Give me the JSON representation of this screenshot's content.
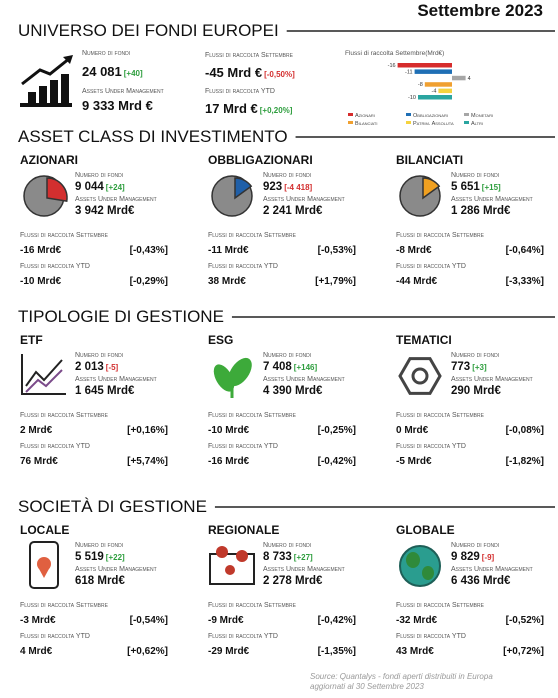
{
  "date": "Settembre 2023",
  "labels": {
    "funds": "Numero di fondi",
    "aum": "Assets Under Management",
    "flows_sep": "Flussi di raccolta Settembre",
    "flows_ytd": "Flussi di raccolta YTD"
  },
  "universe": {
    "title": "UNIVERSO DEI FONDI EUROPEI",
    "funds": "24 081",
    "funds_change": "[+40]",
    "aum": "9 333 Mrd €",
    "flows_sep": "-45 Mrd €",
    "flows_sep_pct": "[-0,50%]",
    "flows_ytd": "17 Mrd €",
    "flows_ytd_pct": "[+0,20%]"
  },
  "chart_data": {
    "type": "bar",
    "orientation": "horizontal",
    "title": "Flussi di raccolta Settembre(Mrd€)",
    "categories": [
      "Azionari",
      "Obbligazionari",
      "Monetari",
      "Bilanciati",
      "Patrim. Assoluta",
      "Altri"
    ],
    "values": [
      -16,
      -11,
      4,
      -8,
      -4,
      -10
    ],
    "colors": [
      "#d62c2c",
      "#1f6fb5",
      "#a6a6a6",
      "#f0a030",
      "#f5d33f",
      "#2aa5a0"
    ]
  },
  "sections": [
    {
      "title": "ASSET CLASS DI INVESTIMENTO",
      "cards": [
        {
          "name": "AZIONARI",
          "color": "#d32f2f",
          "funds": "9 044",
          "funds_change": "[+24]",
          "aum": "3 942 Mrd€",
          "flows_sep": "-16 Mrd€",
          "flows_sep_pct": "[-0,43%]",
          "flows_ytd": "-10 Mrd€",
          "flows_ytd_pct": "[-0,29%]"
        },
        {
          "name": "OBBLIGAZIONARI",
          "color": "#1f5fa8",
          "funds": "923",
          "funds_change": "[-4 418]",
          "aum": "2 241 Mrd€",
          "flows_sep": "-11 Mrd€",
          "flows_sep_pct": "[-0,53%]",
          "flows_ytd": "38 Mrd€",
          "flows_ytd_pct": "[+1,79%]"
        },
        {
          "name": "BILANCIATI",
          "color": "#f0a020",
          "funds": "5 651",
          "funds_change": "[+15]",
          "aum": "1 286 Mrd€",
          "flows_sep": "-8 Mrd€",
          "flows_sep_pct": "[-0,64%]",
          "flows_ytd": "-44 Mrd€",
          "flows_ytd_pct": "[-3,33%]"
        }
      ]
    },
    {
      "title": "TIPOLOGIE DI GESTIONE",
      "cards": [
        {
          "name": "ETF",
          "color": "#7b4b8a",
          "funds": "2 013",
          "funds_change": "[-5]",
          "aum": "1 645 Mrd€",
          "flows_sep": "2 Mrd€",
          "flows_sep_pct": "[+0,16%]",
          "flows_ytd": "76 Mrd€",
          "flows_ytd_pct": "[+5,74%]"
        },
        {
          "name": "ESG",
          "color": "#3daa3a",
          "funds": "7 408",
          "funds_change": "[+146]",
          "aum": "4 390 Mrd€",
          "flows_sep": "-10 Mrd€",
          "flows_sep_pct": "[-0,25%]",
          "flows_ytd": "-16 Mrd€",
          "flows_ytd_pct": "[-0,42%]"
        },
        {
          "name": "TEMATICI",
          "color": "#333333",
          "funds": "773",
          "funds_change": "[+3]",
          "aum": "290 Mrd€",
          "flows_sep": "0 Mrd€",
          "flows_sep_pct": "[-0,08%]",
          "flows_ytd": "-5 Mrd€",
          "flows_ytd_pct": "[-1,82%]"
        }
      ]
    },
    {
      "title": "SOCIETÀ DI GESTIONE",
      "cards": [
        {
          "name": "LOCALE",
          "color": "#111111",
          "funds": "5 519",
          "funds_change": "[+22]",
          "aum": "618 Mrd€",
          "flows_sep": "-3 Mrd€",
          "flows_sep_pct": "[-0,54%]",
          "flows_ytd": "4 Mrd€",
          "flows_ytd_pct": "[+0,62%]"
        },
        {
          "name": "REGIONALE",
          "color": "#c0392b",
          "funds": "8 733",
          "funds_change": "[+27]",
          "aum": "2 278 Mrd€",
          "flows_sep": "-9 Mrd€",
          "flows_sep_pct": "[-0,42%]",
          "flows_ytd": "-29 Mrd€",
          "flows_ytd_pct": "[-1,35%]"
        },
        {
          "name": "GLOBALE",
          "color": "#2a9d8f",
          "funds": "9 829",
          "funds_change": "[-9]",
          "aum": "6 436 Mrd€",
          "flows_sep": "-32 Mrd€",
          "flows_sep_pct": "[-0,52%]",
          "flows_ytd": "43 Mrd€",
          "flows_ytd_pct": "[+0,72%]"
        }
      ]
    }
  ],
  "source": [
    "Source: Quantalys -  fondi aperti distribuiti in Europa",
    "aggiornati al 30 Settembre 2023"
  ]
}
